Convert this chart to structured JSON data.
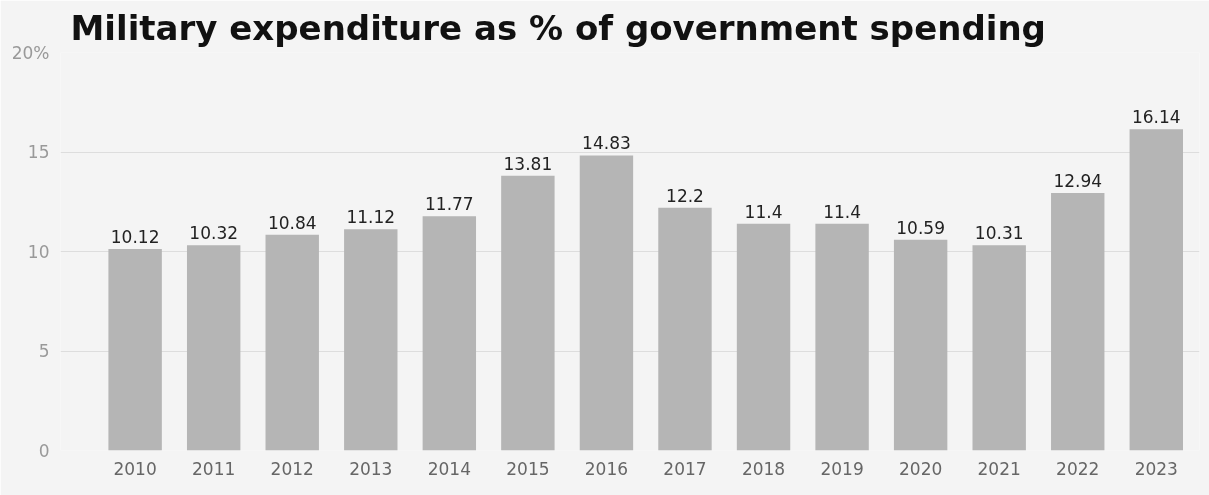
{
  "chart_data": {
    "type": "bar",
    "title": "Military expenditure as % of government spending",
    "categories": [
      "2010",
      "2011",
      "2012",
      "2013",
      "2014",
      "2015",
      "2016",
      "2017",
      "2018",
      "2019",
      "2020",
      "2021",
      "2022",
      "2023"
    ],
    "values": [
      10.12,
      10.32,
      10.84,
      11.12,
      11.77,
      13.81,
      14.83,
      12.2,
      11.4,
      11.4,
      10.59,
      10.31,
      12.94,
      16.14
    ],
    "color": "#b5b5b5",
    "ylim": [
      0,
      20
    ],
    "yticks": [
      0,
      5,
      10,
      15,
      {
        "value": 20,
        "label": "20%"
      }
    ],
    "grid": "y",
    "data_labels": true
  }
}
